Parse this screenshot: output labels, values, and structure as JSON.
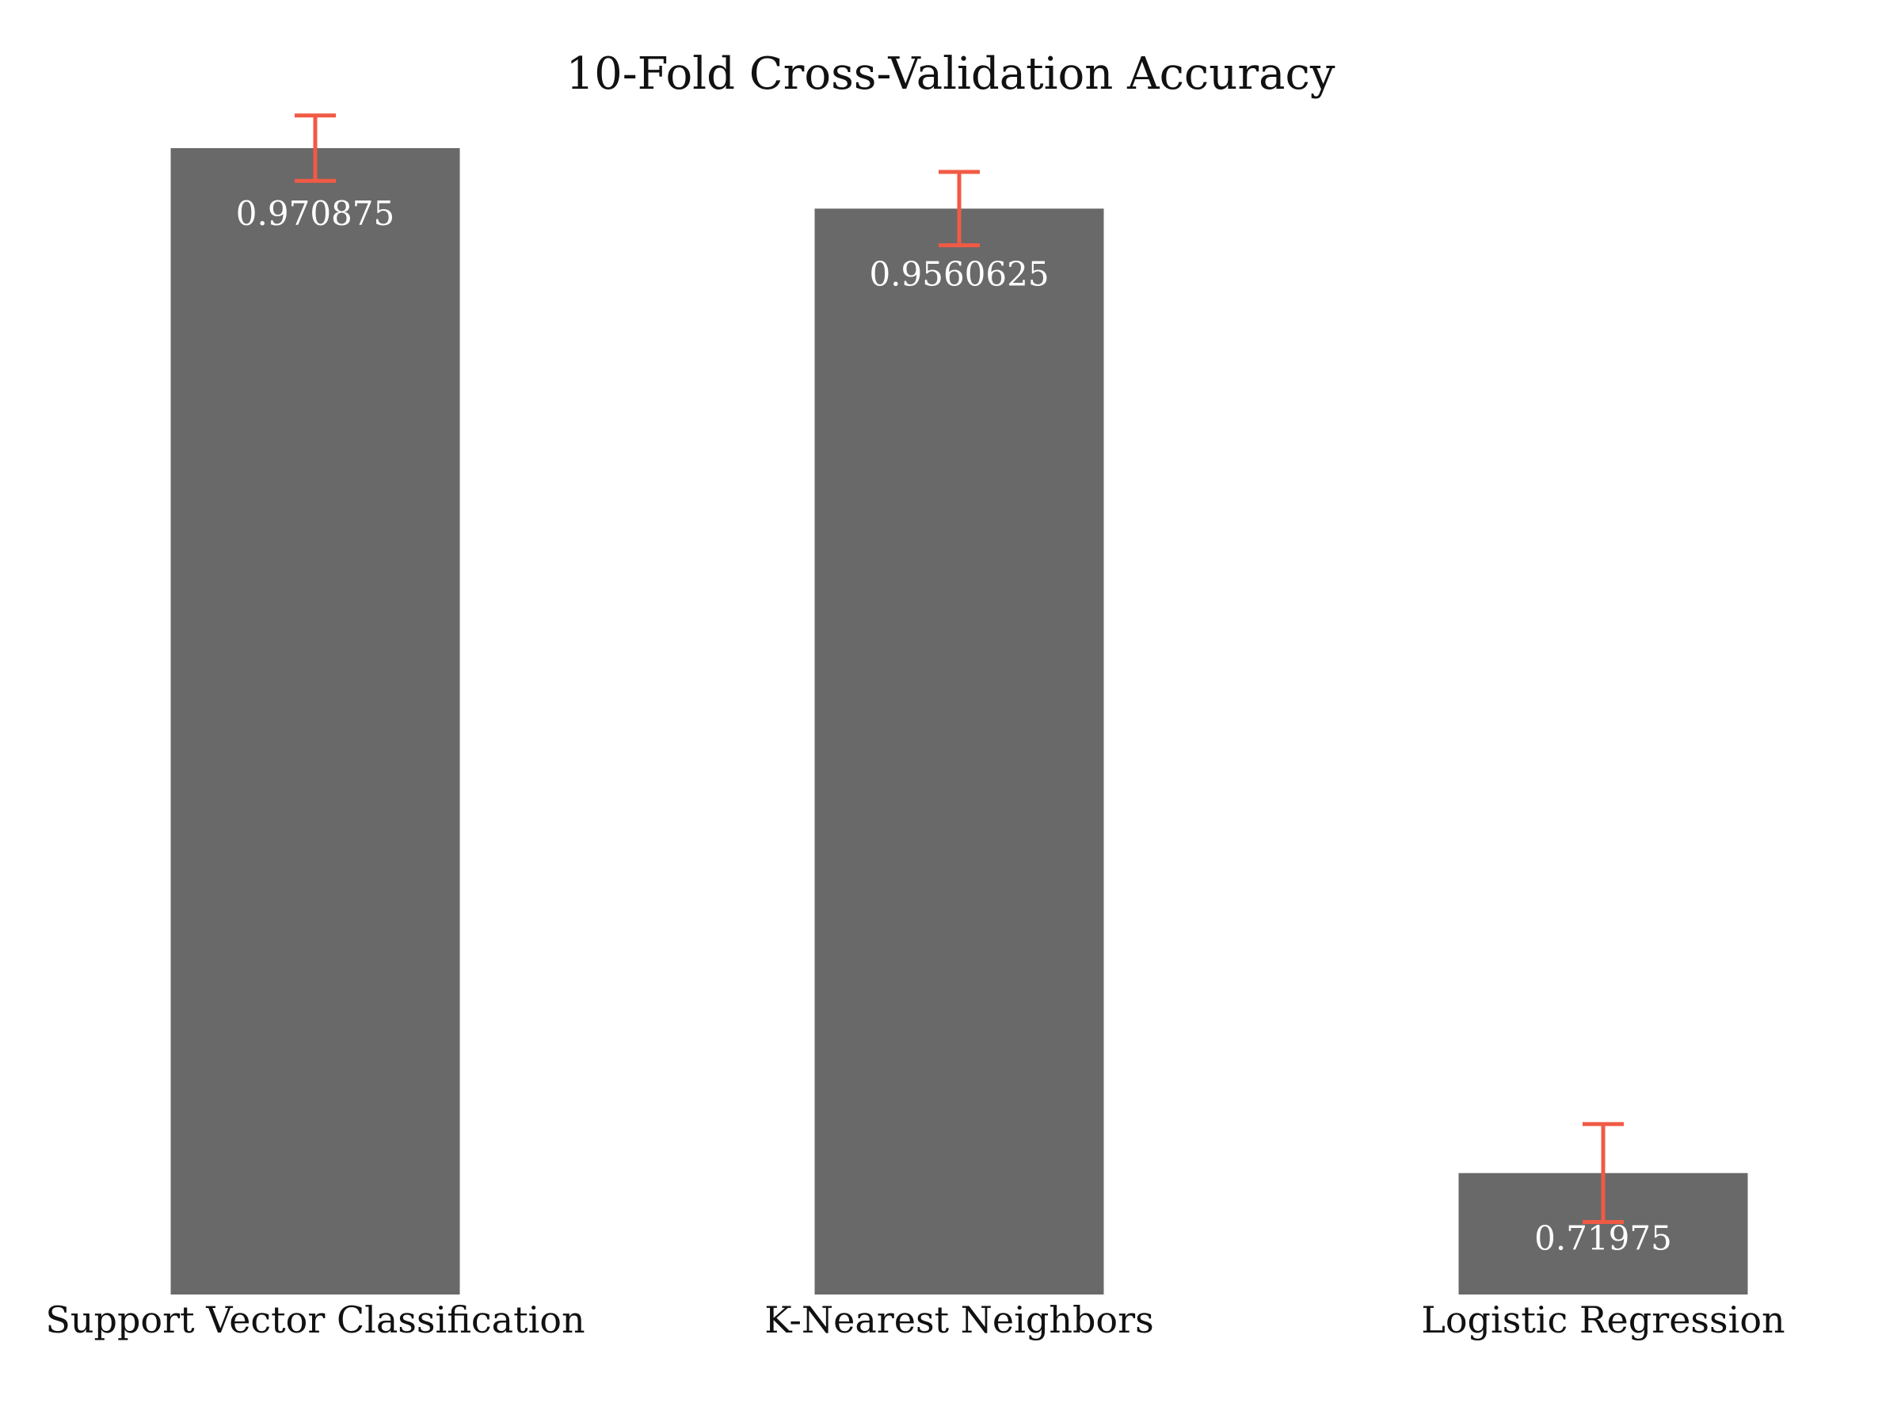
{
  "chart_data": {
    "type": "bar",
    "title": "10-Fold Cross-Validation Accuracy",
    "xlabel": "",
    "ylabel": "",
    "categories": [
      "Support Vector Classification",
      "K-Nearest Neighbors",
      "Logistic Regression"
    ],
    "values": [
      0.970875,
      0.9560625,
      0.71975
    ],
    "value_labels": [
      "0.970875",
      "0.9560625",
      "0.71975"
    ],
    "error": [
      0.008,
      0.009,
      0.012
    ],
    "ylim": [
      0.69,
      0.98
    ],
    "grid": false,
    "bar_color": "#696969",
    "error_color": "#f05a45",
    "value_label_color": "#ffffff"
  }
}
